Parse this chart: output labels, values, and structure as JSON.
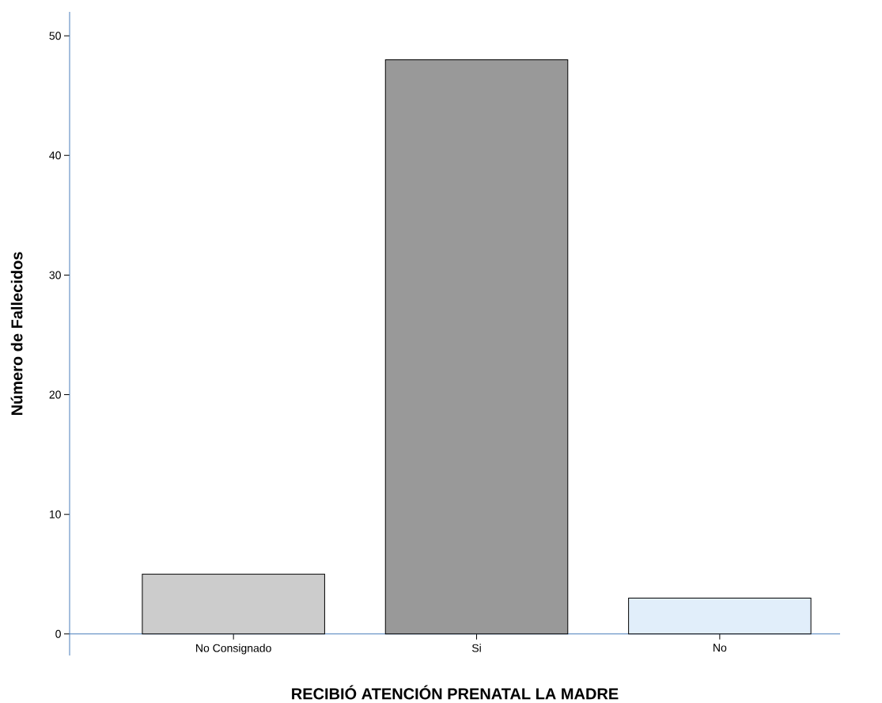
{
  "chart_data": {
    "type": "bar",
    "xlabel": "RECIBIÓ ATENCIÓN PRENATAL LA MADRE",
    "ylabel": "Número de Fallecidos",
    "categories": [
      "No Consignado",
      "Si",
      "No"
    ],
    "values": [
      5,
      48,
      3
    ],
    "colors": [
      "#cccccc",
      "#999999",
      "#e1eefa"
    ],
    "ylim": [
      -1.8,
      52
    ],
    "yticks": [
      0,
      10,
      20,
      30,
      40,
      50
    ]
  }
}
